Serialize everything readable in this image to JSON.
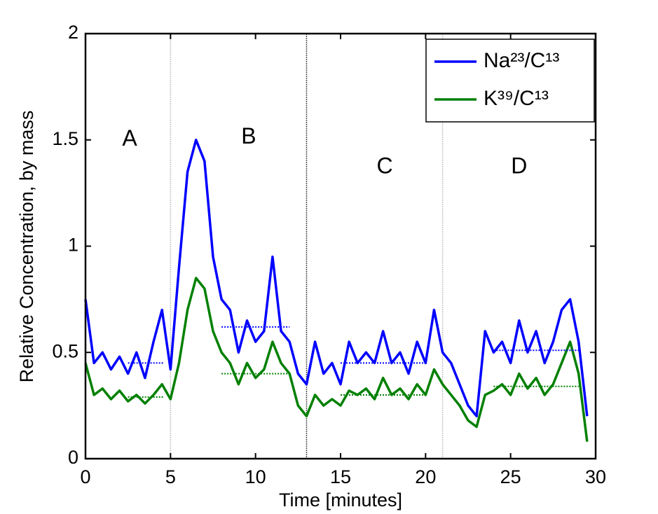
{
  "chart_data": {
    "type": "line",
    "xlabel": "Time [minutes]",
    "ylabel": "Relative Concentration, by mass",
    "x": [
      0,
      0.5,
      1,
      1.5,
      2,
      2.5,
      3,
      3.5,
      4,
      4.5,
      5,
      5.5,
      6,
      6.5,
      7,
      7.5,
      8,
      8.5,
      9,
      9.5,
      10,
      10.5,
      11,
      11.5,
      12,
      12.5,
      13,
      13.5,
      14,
      14.5,
      15,
      15.5,
      16,
      16.5,
      17,
      17.5,
      18,
      18.5,
      19,
      19.5,
      20,
      20.5,
      21,
      21.5,
      22,
      22.5,
      23,
      23.5,
      24,
      24.5,
      25,
      25.5,
      26,
      26.5,
      27,
      27.5,
      28,
      28.5,
      29,
      29.5
    ],
    "series": [
      {
        "name": "Na²³/C¹³",
        "color": "#0000ff",
        "values": [
          0.75,
          0.45,
          0.5,
          0.42,
          0.48,
          0.4,
          0.5,
          0.38,
          0.55,
          0.7,
          0.42,
          0.9,
          1.35,
          1.5,
          1.4,
          0.95,
          0.75,
          0.7,
          0.5,
          0.65,
          0.55,
          0.6,
          0.95,
          0.6,
          0.55,
          0.4,
          0.35,
          0.55,
          0.4,
          0.45,
          0.35,
          0.55,
          0.45,
          0.5,
          0.45,
          0.6,
          0.45,
          0.5,
          0.4,
          0.55,
          0.45,
          0.7,
          0.5,
          0.45,
          0.35,
          0.25,
          0.2,
          0.6,
          0.5,
          0.55,
          0.45,
          0.65,
          0.5,
          0.6,
          0.45,
          0.55,
          0.7,
          0.75,
          0.55,
          0.2
        ]
      },
      {
        "name": "K³⁹/C¹³",
        "color": "#008000",
        "values": [
          0.45,
          0.3,
          0.33,
          0.28,
          0.32,
          0.27,
          0.3,
          0.26,
          0.3,
          0.35,
          0.28,
          0.45,
          0.7,
          0.85,
          0.8,
          0.6,
          0.5,
          0.45,
          0.35,
          0.45,
          0.38,
          0.42,
          0.55,
          0.45,
          0.4,
          0.25,
          0.2,
          0.3,
          0.25,
          0.28,
          0.25,
          0.32,
          0.3,
          0.33,
          0.28,
          0.38,
          0.3,
          0.33,
          0.28,
          0.35,
          0.3,
          0.42,
          0.35,
          0.3,
          0.25,
          0.18,
          0.15,
          0.3,
          0.32,
          0.35,
          0.3,
          0.4,
          0.33,
          0.38,
          0.3,
          0.35,
          0.45,
          0.55,
          0.4,
          0.08
        ]
      }
    ],
    "mean_lines": [
      {
        "series": 0,
        "x": [
          2.5,
          4.6
        ],
        "value": 0.45
      },
      {
        "series": 0,
        "x": [
          8,
          12
        ],
        "value": 0.62
      },
      {
        "series": 0,
        "x": [
          15,
          20
        ],
        "value": 0.45
      },
      {
        "series": 0,
        "x": [
          24,
          29
        ],
        "value": 0.51
      },
      {
        "series": 1,
        "x": [
          2.5,
          4.6
        ],
        "value": 0.29
      },
      {
        "series": 1,
        "x": [
          8,
          12
        ],
        "value": 0.4
      },
      {
        "series": 1,
        "x": [
          15,
          20
        ],
        "value": 0.3
      },
      {
        "series": 1,
        "x": [
          24,
          29
        ],
        "value": 0.34
      }
    ],
    "vlines": [
      5,
      13,
      21
    ],
    "vline_colors": [
      "#c8c8c8",
      "#555555",
      "#c8c8c8"
    ],
    "annotations": [
      {
        "text": "A",
        "x": 2.6,
        "y": 1.5
      },
      {
        "text": "B",
        "x": 9.6,
        "y": 1.51
      },
      {
        "text": "C",
        "x": 17.6,
        "y": 1.37
      },
      {
        "text": "D",
        "x": 25.5,
        "y": 1.37
      }
    ],
    "xlim": [
      0,
      30
    ],
    "xticks": [
      0,
      5,
      10,
      15,
      20,
      25,
      30
    ],
    "ylim": [
      0,
      2
    ],
    "yticks": [
      0,
      0.5,
      1,
      1.5,
      2
    ],
    "legend": "upper right"
  }
}
